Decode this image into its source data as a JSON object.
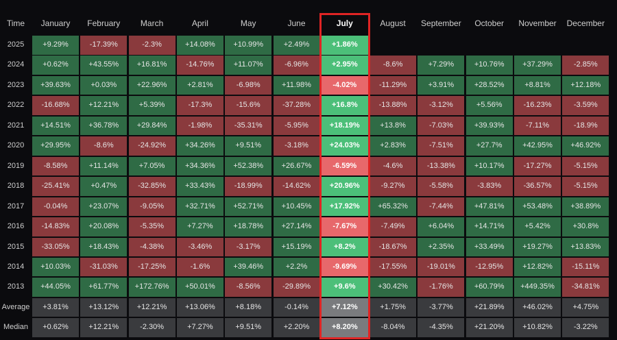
{
  "chart_data": {
    "type": "heatmap",
    "corner_label": "Time",
    "highlight_column": "July",
    "columns": [
      "January",
      "February",
      "March",
      "April",
      "May",
      "June",
      "July",
      "August",
      "September",
      "October",
      "November",
      "December"
    ],
    "rows": [
      "2025",
      "2024",
      "2023",
      "2022",
      "2021",
      "2020",
      "2019",
      "2018",
      "2017",
      "2016",
      "2015",
      "2014",
      "2013",
      "Average",
      "Median"
    ],
    "values": [
      [
        "+9.29%",
        "-17.39%",
        "-2.3%",
        "+14.08%",
        "+10.99%",
        "+2.49%",
        "+1.86%",
        null,
        null,
        null,
        null,
        null
      ],
      [
        "+0.62%",
        "+43.55%",
        "+16.81%",
        "-14.76%",
        "+11.07%",
        "-6.96%",
        "+2.95%",
        "-8.6%",
        "+7.29%",
        "+10.76%",
        "+37.29%",
        "-2.85%"
      ],
      [
        "+39.63%",
        "+0.03%",
        "+22.96%",
        "+2.81%",
        "-6.98%",
        "+11.98%",
        "-4.02%",
        "-11.29%",
        "+3.91%",
        "+28.52%",
        "+8.81%",
        "+12.18%"
      ],
      [
        "-16.68%",
        "+12.21%",
        "+5.39%",
        "-17.3%",
        "-15.6%",
        "-37.28%",
        "+16.8%",
        "-13.88%",
        "-3.12%",
        "+5.56%",
        "-16.23%",
        "-3.59%"
      ],
      [
        "+14.51%",
        "+36.78%",
        "+29.84%",
        "-1.98%",
        "-35.31%",
        "-5.95%",
        "+18.19%",
        "+13.8%",
        "-7.03%",
        "+39.93%",
        "-7.11%",
        "-18.9%"
      ],
      [
        "+29.95%",
        "-8.6%",
        "-24.92%",
        "+34.26%",
        "+9.51%",
        "-3.18%",
        "+24.03%",
        "+2.83%",
        "-7.51%",
        "+27.7%",
        "+42.95%",
        "+46.92%"
      ],
      [
        "-8.58%",
        "+11.14%",
        "+7.05%",
        "+34.36%",
        "+52.38%",
        "+26.67%",
        "-6.59%",
        "-4.6%",
        "-13.38%",
        "+10.17%",
        "-17.27%",
        "-5.15%"
      ],
      [
        "-25.41%",
        "+0.47%",
        "-32.85%",
        "+33.43%",
        "-18.99%",
        "-14.62%",
        "+20.96%",
        "-9.27%",
        "-5.58%",
        "-3.83%",
        "-36.57%",
        "-5.15%"
      ],
      [
        "-0.04%",
        "+23.07%",
        "-9.05%",
        "+32.71%",
        "+52.71%",
        "+10.45%",
        "+17.92%",
        "+65.32%",
        "-7.44%",
        "+47.81%",
        "+53.48%",
        "+38.89%"
      ],
      [
        "-14.83%",
        "+20.08%",
        "-5.35%",
        "+7.27%",
        "+18.78%",
        "+27.14%",
        "-7.67%",
        "-7.49%",
        "+6.04%",
        "+14.71%",
        "+5.42%",
        "+30.8%"
      ],
      [
        "-33.05%",
        "+18.43%",
        "-4.38%",
        "-3.46%",
        "-3.17%",
        "+15.19%",
        "+8.2%",
        "-18.67%",
        "+2.35%",
        "+33.49%",
        "+19.27%",
        "+13.83%"
      ],
      [
        "+10.03%",
        "-31.03%",
        "-17.25%",
        "-1.6%",
        "+39.46%",
        "+2.2%",
        "-9.69%",
        "-17.55%",
        "-19.01%",
        "-12.95%",
        "+12.82%",
        "-15.11%"
      ],
      [
        "+44.05%",
        "+61.77%",
        "+172.76%",
        "+50.01%",
        "-8.56%",
        "-29.89%",
        "+9.6%",
        "+30.42%",
        "-1.76%",
        "+60.79%",
        "+449.35%",
        "-34.81%"
      ],
      [
        "+3.81%",
        "+13.12%",
        "+12.21%",
        "+13.06%",
        "+8.18%",
        "-0.14%",
        "+7.12%",
        "+1.75%",
        "-3.77%",
        "+21.89%",
        "+46.02%",
        "+4.75%"
      ],
      [
        "+0.62%",
        "+12.21%",
        "-2.30%",
        "+7.27%",
        "+9.51%",
        "+2.20%",
        "+8.20%",
        "-8.04%",
        "-4.35%",
        "+21.20%",
        "+10.82%",
        "-3.22%"
      ]
    ],
    "summary_rows": [
      "Average",
      "Median"
    ],
    "colors": {
      "background": "#0b0b0e",
      "positive": "#2f6b45",
      "negative": "#8a3a3d",
      "positive_highlight": "#4cbf79",
      "negative_highlight": "#e7686b",
      "summary": "#3a3b3e",
      "summary_highlight": "#7a7b7e",
      "highlight_border": "#e02424"
    }
  }
}
